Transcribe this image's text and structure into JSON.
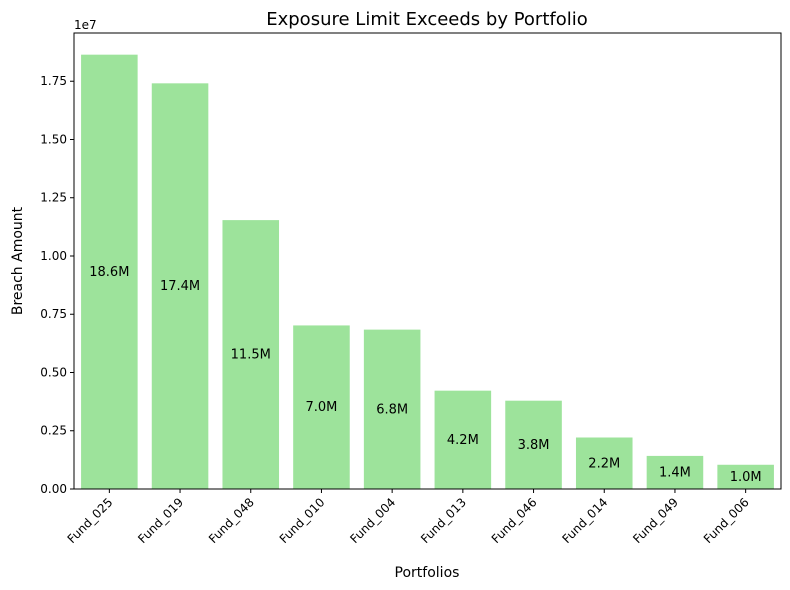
{
  "chart_data": {
    "type": "bar",
    "title": "Exposure Limit Exceeds by Portfolio",
    "xlabel": "Portfolios",
    "ylabel": "Breach Amount",
    "y_offset_label": "1e7",
    "categories": [
      "Fund_025",
      "Fund_019",
      "Fund_048",
      "Fund_010",
      "Fund_004",
      "Fund_013",
      "Fund_046",
      "Fund_014",
      "Fund_049",
      "Fund_006"
    ],
    "values": [
      18640000,
      17410000,
      11540000,
      7020000,
      6840000,
      4220000,
      3790000,
      2210000,
      1420000,
      1040000
    ],
    "data_labels": [
      "18.6M",
      "17.4M",
      "11.5M",
      "7.0M",
      "6.8M",
      "4.2M",
      "3.8M",
      "2.2M",
      "1.4M",
      "1.0M"
    ],
    "yticks": [
      0.0,
      0.25,
      0.5,
      0.75,
      1.0,
      1.25,
      1.5,
      1.75
    ],
    "ytick_labels": [
      "0.00",
      "0.25",
      "0.50",
      "0.75",
      "1.00",
      "1.25",
      "1.50",
      "1.75"
    ],
    "ylim": [
      0,
      19570000
    ],
    "bar_color": "#9de39b",
    "grid": false,
    "legend": "none"
  }
}
